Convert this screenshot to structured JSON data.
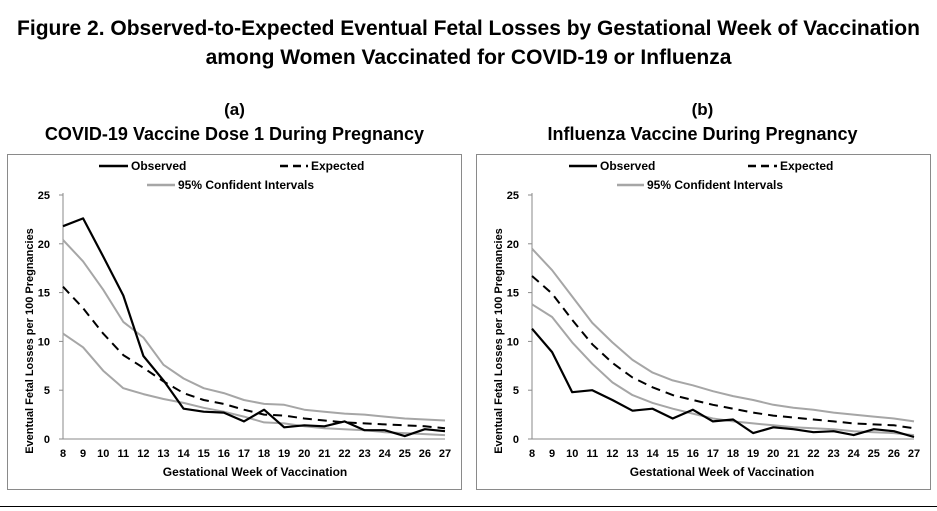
{
  "figure": {
    "title_line1": "Figure 2. Observed-to-Expected Eventual Fetal Losses by Gestational Week of Vaccination",
    "title_line2": "among Women Vaccinated for COVID-19 or Influenza"
  },
  "legend": {
    "observed": "Observed",
    "expected": "Expected",
    "ci": "95% Confident Intervals"
  },
  "colors": {
    "observed": "#000000",
    "expected": "#000000",
    "ci": "#a6a6a6",
    "frame": "#8a8a8a"
  },
  "chart_data": [
    {
      "type": "line",
      "tag": "(a)",
      "title": "COVID-19 Vaccine Dose 1 During Pregnancy",
      "xlabel": "Gestational Week of Vaccination",
      "ylabel": "Eventual Fetal Losses per 100 Pregnancies",
      "ylim": [
        0,
        25
      ],
      "yticks": [
        0,
        5,
        10,
        15,
        20,
        25
      ],
      "x": [
        8,
        9,
        10,
        11,
        12,
        13,
        14,
        15,
        16,
        17,
        18,
        19,
        20,
        21,
        22,
        23,
        24,
        25,
        26,
        27
      ],
      "series": [
        {
          "name": "Observed",
          "style": "observed",
          "values": [
            21.8,
            22.6,
            18.7,
            14.7,
            8.5,
            6.0,
            3.1,
            2.8,
            2.7,
            1.8,
            3.0,
            1.2,
            1.4,
            1.3,
            1.8,
            0.9,
            0.9,
            0.3,
            1.0,
            0.8
          ]
        },
        {
          "name": "Expected",
          "style": "expected",
          "values": [
            15.6,
            13.4,
            10.8,
            8.6,
            7.3,
            5.9,
            4.7,
            4.0,
            3.6,
            3.0,
            2.5,
            2.4,
            2.1,
            1.9,
            1.7,
            1.6,
            1.5,
            1.4,
            1.3,
            1.1
          ]
        },
        {
          "name": "95% Confident Intervals",
          "style": "ci",
          "values": [
            20.4,
            18.2,
            15.3,
            12.0,
            10.4,
            7.6,
            6.2,
            5.2,
            4.7,
            4.0,
            3.6,
            3.5,
            3.0,
            2.8,
            2.6,
            2.5,
            2.3,
            2.1,
            2.0,
            1.9
          ]
        },
        {
          "name": "95% Confident Intervals",
          "style": "ci",
          "values": [
            10.8,
            9.4,
            7.0,
            5.2,
            4.6,
            4.1,
            3.7,
            3.2,
            2.8,
            2.3,
            1.7,
            1.6,
            1.3,
            1.1,
            1.0,
            0.9,
            0.7,
            0.6,
            0.5,
            0.4
          ]
        }
      ]
    },
    {
      "type": "line",
      "tag": "(b)",
      "title": "Influenza Vaccine During Pregnancy",
      "xlabel": "Gestational Week of Vaccination",
      "ylabel": "Eventual Fetal Losses per 100 Pregnancies",
      "ylim": [
        0,
        25
      ],
      "yticks": [
        0,
        5,
        10,
        15,
        20,
        25
      ],
      "x": [
        8,
        9,
        10,
        11,
        12,
        13,
        14,
        15,
        16,
        17,
        18,
        19,
        20,
        21,
        22,
        23,
        24,
        25,
        26,
        27
      ],
      "series": [
        {
          "name": "Observed",
          "style": "observed",
          "values": [
            11.3,
            8.9,
            4.8,
            5.0,
            4.0,
            2.9,
            3.1,
            2.1,
            3.0,
            1.8,
            2.0,
            0.6,
            1.2,
            1.0,
            0.7,
            0.8,
            0.4,
            1.0,
            0.8,
            0.2
          ]
        },
        {
          "name": "Expected",
          "style": "expected",
          "values": [
            16.7,
            14.9,
            12.2,
            9.7,
            7.8,
            6.3,
            5.3,
            4.5,
            4.0,
            3.5,
            3.1,
            2.7,
            2.4,
            2.2,
            2.0,
            1.8,
            1.6,
            1.5,
            1.4,
            1.1
          ]
        },
        {
          "name": "95% Confident Intervals",
          "style": "ci",
          "values": [
            19.5,
            17.3,
            14.6,
            11.9,
            9.9,
            8.1,
            6.8,
            6.0,
            5.5,
            4.9,
            4.4,
            4.0,
            3.5,
            3.2,
            3.0,
            2.7,
            2.5,
            2.3,
            2.1,
            1.8
          ]
        },
        {
          "name": "95% Confident Intervals",
          "style": "ci",
          "values": [
            13.8,
            12.5,
            9.9,
            7.7,
            5.8,
            4.5,
            3.7,
            3.1,
            2.6,
            2.1,
            1.8,
            1.6,
            1.4,
            1.2,
            1.1,
            1.0,
            0.8,
            0.7,
            0.6,
            0.4
          ]
        }
      ]
    }
  ]
}
